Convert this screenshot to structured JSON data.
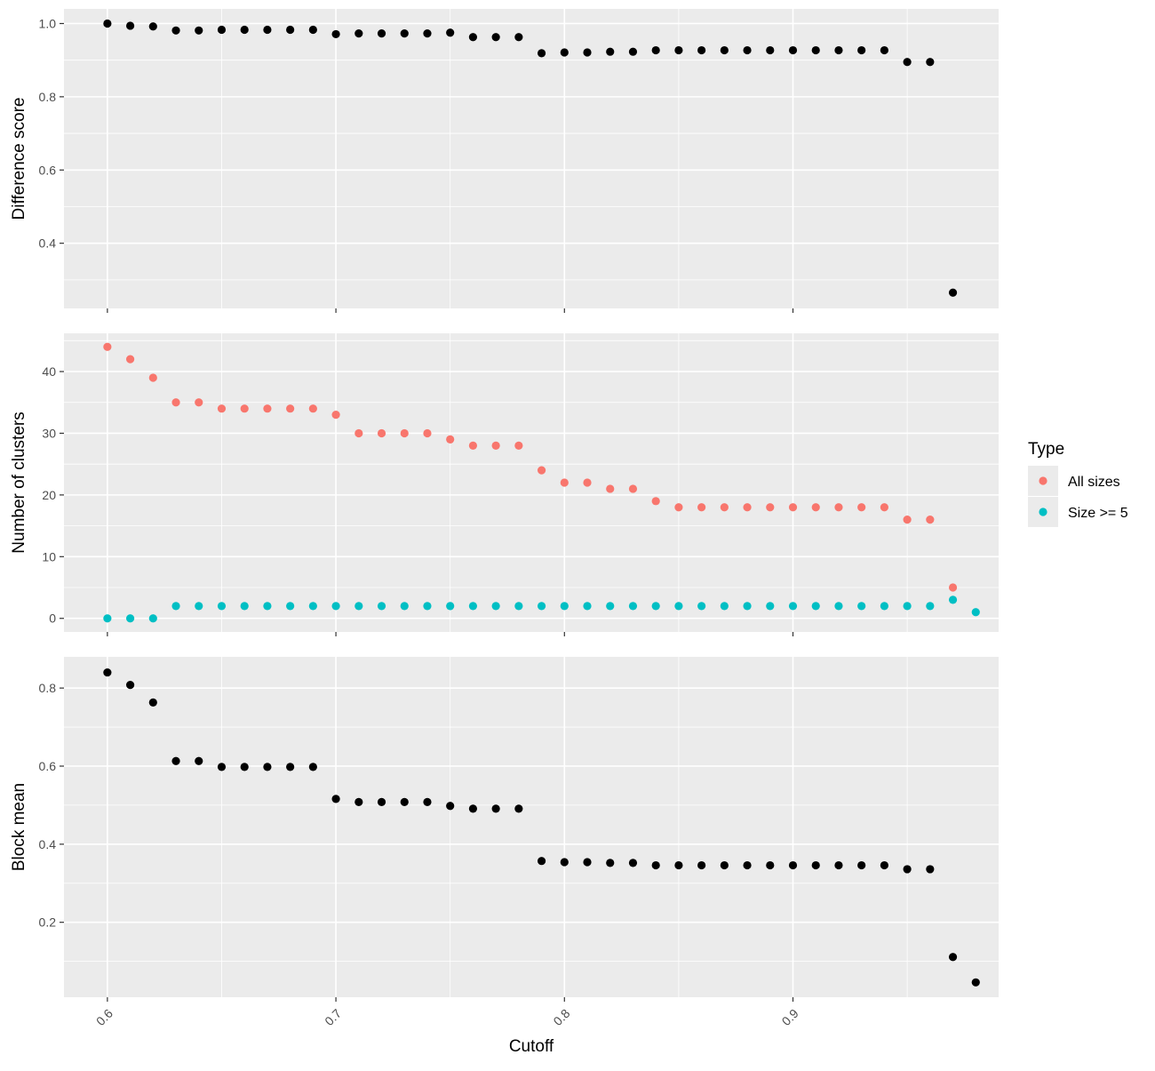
{
  "chart_data": [
    {
      "type": "scatter",
      "panel": "top",
      "xlabel": "",
      "ylabel": "Difference score",
      "xlim": [
        0.581,
        0.99
      ],
      "ylim": [
        0.222,
        1.04
      ],
      "x_ticks": [
        0.6,
        0.7,
        0.8,
        0.9
      ],
      "y_ticks": [
        0.4,
        0.6,
        0.8,
        1.0
      ],
      "y_tick_labels": [
        "0.4",
        "0.6",
        "0.8",
        "1.0"
      ],
      "series": [
        {
          "color": "#000000",
          "x": [
            0.6,
            0.61,
            0.62,
            0.63,
            0.64,
            0.65,
            0.66,
            0.67,
            0.68,
            0.69,
            0.7,
            0.71,
            0.72,
            0.73,
            0.74,
            0.75,
            0.76,
            0.77,
            0.78,
            0.79,
            0.8,
            0.81,
            0.82,
            0.83,
            0.84,
            0.85,
            0.86,
            0.87,
            0.88,
            0.89,
            0.9,
            0.91,
            0.92,
            0.93,
            0.94,
            0.95,
            0.96,
            0.97
          ],
          "y": [
            1.0,
            0.994,
            0.992,
            0.981,
            0.981,
            0.983,
            0.983,
            0.983,
            0.983,
            0.983,
            0.971,
            0.973,
            0.973,
            0.973,
            0.973,
            0.975,
            0.963,
            0.963,
            0.963,
            0.919,
            0.921,
            0.921,
            0.923,
            0.923,
            0.927,
            0.927,
            0.927,
            0.927,
            0.927,
            0.927,
            0.927,
            0.927,
            0.927,
            0.927,
            0.927,
            0.895,
            0.895,
            0.265
          ]
        }
      ]
    },
    {
      "type": "scatter",
      "panel": "middle",
      "xlabel": "",
      "ylabel": "Number of clusters",
      "xlim": [
        0.581,
        0.99
      ],
      "ylim": [
        -2.2,
        46.2
      ],
      "x_ticks": [
        0.6,
        0.7,
        0.8,
        0.9
      ],
      "y_ticks": [
        0,
        10,
        20,
        30,
        40
      ],
      "y_tick_labels": [
        "0",
        "10",
        "20",
        "30",
        "40"
      ],
      "legend": {
        "title": "Type",
        "position": "right"
      },
      "series": [
        {
          "name": "All sizes",
          "color": "#F8766D",
          "x": [
            0.6,
            0.61,
            0.62,
            0.63,
            0.64,
            0.65,
            0.66,
            0.67,
            0.68,
            0.69,
            0.7,
            0.71,
            0.72,
            0.73,
            0.74,
            0.75,
            0.76,
            0.77,
            0.78,
            0.79,
            0.8,
            0.81,
            0.82,
            0.83,
            0.84,
            0.85,
            0.86,
            0.87,
            0.88,
            0.89,
            0.9,
            0.91,
            0.92,
            0.93,
            0.94,
            0.95,
            0.96,
            0.97
          ],
          "y": [
            44,
            42,
            39,
            35,
            35,
            34,
            34,
            34,
            34,
            34,
            33,
            30,
            30,
            30,
            30,
            29,
            28,
            28,
            28,
            24,
            22,
            22,
            21,
            21,
            19,
            18,
            18,
            18,
            18,
            18,
            18,
            18,
            18,
            18,
            18,
            16,
            16,
            5
          ]
        },
        {
          "name": "Size >= 5",
          "color": "#00BFC4",
          "x": [
            0.6,
            0.61,
            0.62,
            0.63,
            0.64,
            0.65,
            0.66,
            0.67,
            0.68,
            0.69,
            0.7,
            0.71,
            0.72,
            0.73,
            0.74,
            0.75,
            0.76,
            0.77,
            0.78,
            0.79,
            0.8,
            0.81,
            0.82,
            0.83,
            0.84,
            0.85,
            0.86,
            0.87,
            0.88,
            0.89,
            0.9,
            0.91,
            0.92,
            0.93,
            0.94,
            0.95,
            0.96,
            0.97,
            0.98
          ],
          "y": [
            0,
            0,
            0,
            2,
            2,
            2,
            2,
            2,
            2,
            2,
            2,
            2,
            2,
            2,
            2,
            2,
            2,
            2,
            2,
            2,
            2,
            2,
            2,
            2,
            2,
            2,
            2,
            2,
            2,
            2,
            2,
            2,
            2,
            2,
            2,
            2,
            2,
            3,
            1
          ]
        }
      ]
    },
    {
      "type": "scatter",
      "panel": "bottom",
      "xlabel": "Cutoff",
      "ylabel": "Block mean",
      "xlim": [
        0.581,
        0.99
      ],
      "ylim": [
        0.008,
        0.88
      ],
      "x_ticks": [
        0.6,
        0.7,
        0.8,
        0.9
      ],
      "x_tick_labels": [
        "0.6",
        "0.7",
        "0.8",
        "0.9"
      ],
      "y_ticks": [
        0.2,
        0.4,
        0.6,
        0.8
      ],
      "y_tick_labels": [
        "0.2",
        "0.4",
        "0.6",
        "0.8"
      ],
      "series": [
        {
          "color": "#000000",
          "x": [
            0.6,
            0.61,
            0.62,
            0.63,
            0.64,
            0.65,
            0.66,
            0.67,
            0.68,
            0.69,
            0.7,
            0.71,
            0.72,
            0.73,
            0.74,
            0.75,
            0.76,
            0.77,
            0.78,
            0.79,
            0.8,
            0.81,
            0.82,
            0.83,
            0.84,
            0.85,
            0.86,
            0.87,
            0.88,
            0.89,
            0.9,
            0.91,
            0.92,
            0.93,
            0.94,
            0.95,
            0.96,
            0.97,
            0.98
          ],
          "y": [
            0.84,
            0.808,
            0.763,
            0.613,
            0.613,
            0.598,
            0.598,
            0.598,
            0.598,
            0.598,
            0.516,
            0.508,
            0.508,
            0.508,
            0.508,
            0.498,
            0.491,
            0.491,
            0.491,
            0.357,
            0.354,
            0.354,
            0.352,
            0.352,
            0.346,
            0.346,
            0.346,
            0.346,
            0.346,
            0.346,
            0.346,
            0.346,
            0.346,
            0.346,
            0.346,
            0.336,
            0.336,
            0.111,
            0.046
          ]
        }
      ]
    }
  ]
}
